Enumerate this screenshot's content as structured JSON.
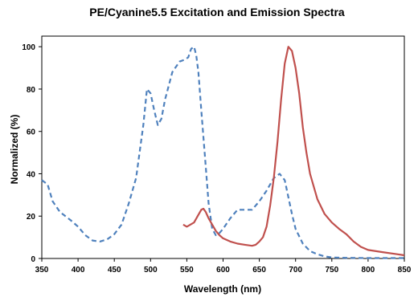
{
  "chart_data": {
    "type": "line",
    "title": "PE/Cyanine5.5 Excitation and Emission Spectra",
    "xlabel": "Wavelength (nm)",
    "ylabel": "Normalized (%)",
    "xlim": [
      350,
      850
    ],
    "ylim": [
      0,
      105
    ],
    "xticks": [
      350,
      400,
      450,
      500,
      550,
      600,
      650,
      700,
      750,
      800,
      850
    ],
    "yticks": [
      0,
      20,
      40,
      60,
      80,
      100
    ],
    "grid": false,
    "legend": "none",
    "series": [
      {
        "role": "excitation",
        "color": "#4f81bd",
        "dash": "dashed",
        "x": [
          350,
          358,
          365,
          375,
          390,
          400,
          410,
          420,
          430,
          440,
          450,
          460,
          470,
          480,
          490,
          495,
          500,
          505,
          510,
          515,
          520,
          530,
          540,
          548,
          552,
          556,
          560,
          563,
          566,
          570,
          575,
          580,
          585,
          590,
          595,
          600,
          610,
          620,
          630,
          640,
          650,
          660,
          670,
          678,
          685,
          690,
          695,
          700,
          710,
          720,
          730,
          740,
          750,
          770,
          800,
          830,
          850
        ],
        "y": [
          37,
          35,
          27,
          22,
          18,
          15,
          11,
          8.5,
          8,
          9,
          11.5,
          16,
          26,
          38,
          63,
          80,
          78,
          70,
          63,
          66,
          75,
          88,
          93,
          94,
          95,
          99,
          100,
          96,
          88,
          70,
          48,
          26,
          14,
          11,
          12,
          14,
          19,
          23,
          23,
          23,
          27,
          32,
          38,
          40,
          37,
          29,
          21,
          14,
          7,
          3.5,
          2,
          1,
          0.5,
          0.3,
          0.2,
          0.2,
          0.2
        ]
      },
      {
        "role": "emission",
        "color": "#c0504d",
        "dash": "solid",
        "x": [
          545,
          550,
          555,
          560,
          565,
          570,
          573,
          576,
          580,
          585,
          590,
          595,
          600,
          610,
          620,
          630,
          640,
          645,
          650,
          655,
          660,
          665,
          670,
          675,
          680,
          685,
          690,
          695,
          700,
          705,
          710,
          715,
          720,
          730,
          740,
          750,
          760,
          770,
          780,
          790,
          800,
          820,
          840,
          850
        ],
        "y": [
          16,
          15,
          16,
          17,
          20,
          23,
          23.5,
          22,
          19,
          16,
          13,
          11,
          9.5,
          8,
          7,
          6.5,
          6,
          6.5,
          8,
          10,
          15,
          25,
          38,
          55,
          75,
          92,
          100,
          98,
          90,
          78,
          62,
          50,
          40,
          28,
          21,
          17,
          14,
          11.5,
          8,
          5.5,
          4,
          3,
          2,
          1.5
        ]
      }
    ]
  }
}
